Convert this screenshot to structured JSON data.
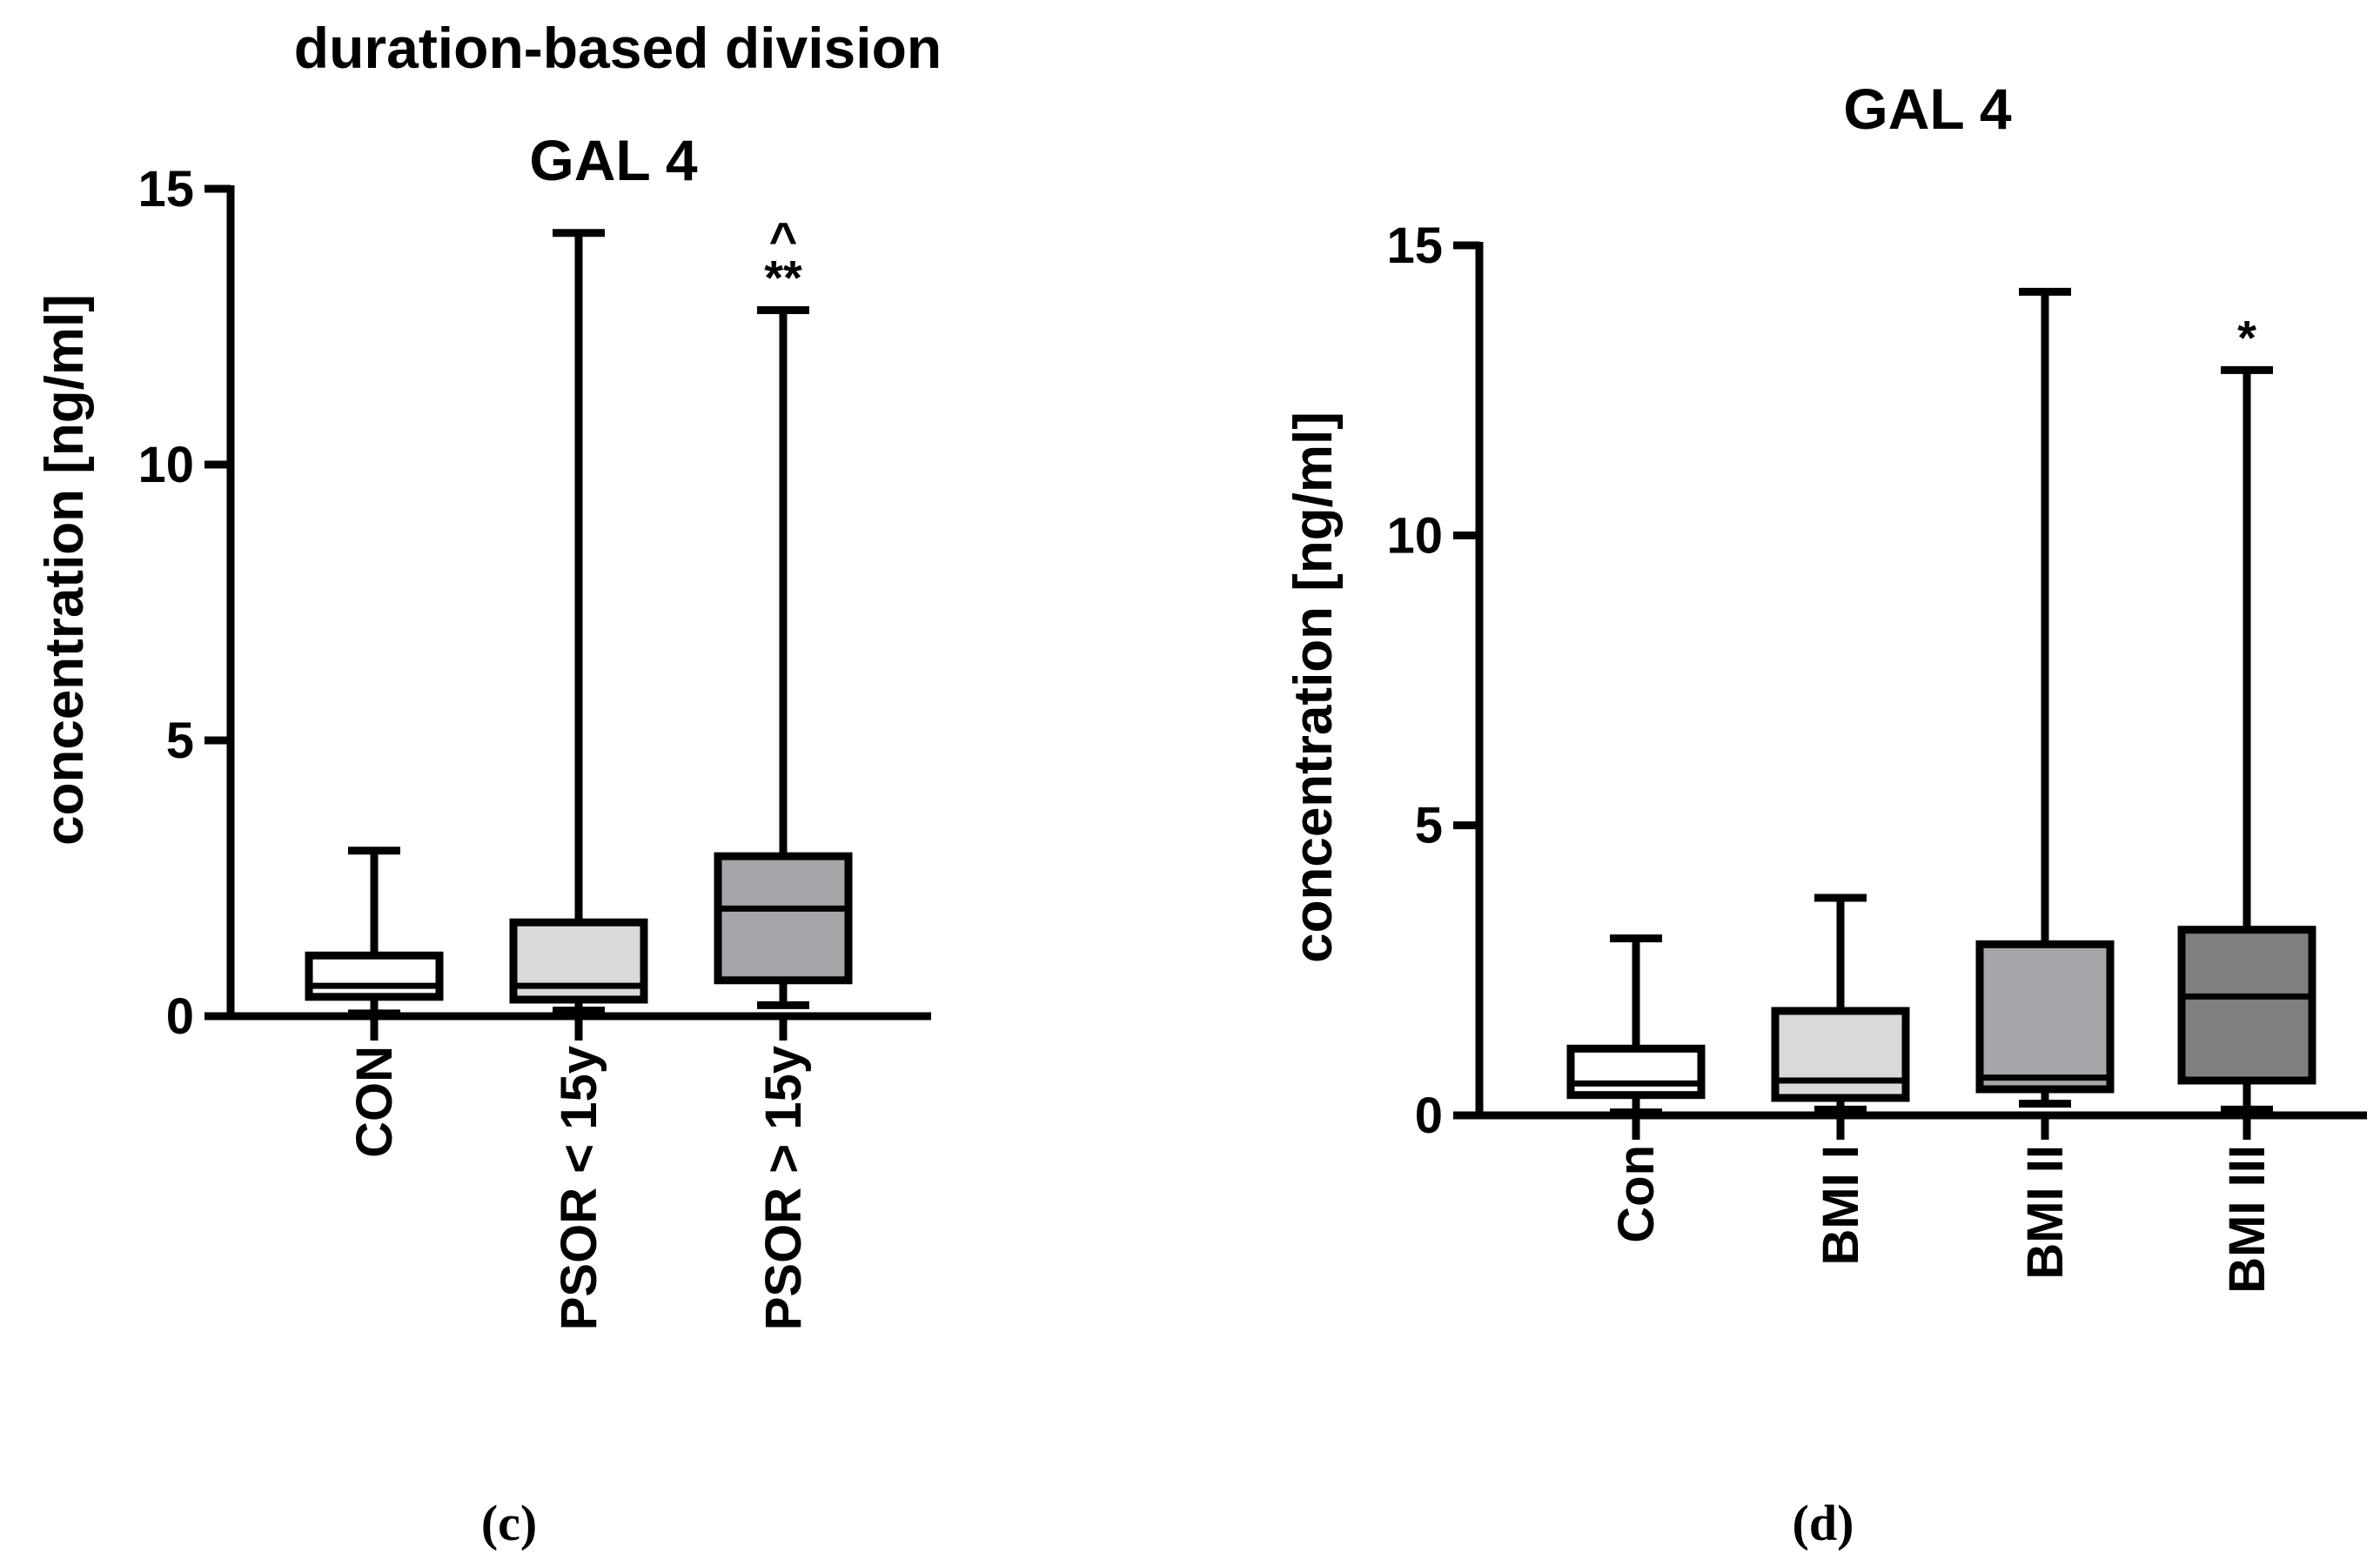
{
  "panels": [
    {
      "id": "c",
      "heading": "duration-based division",
      "label": "(c)"
    },
    {
      "id": "d",
      "heading": "",
      "label": "(d)"
    }
  ],
  "chart_data": [
    {
      "type": "boxplot",
      "title": "GAL 4",
      "suptitle": "duration-based division",
      "panel_label": "(c)",
      "xlabel": "",
      "ylabel": "concentration [ng/ml]",
      "ylim": [
        0,
        15
      ],
      "yticks": [
        0,
        5,
        10,
        15
      ],
      "ytick_labels": [
        "0",
        "5",
        "10",
        "15"
      ],
      "categories": [
        "CON",
        "PSOR < 15y",
        "PSOR > 15y"
      ],
      "boxes": [
        {
          "name": "CON",
          "min": 0.05,
          "q1": 0.35,
          "median": 0.55,
          "q3": 1.1,
          "max": 3.0,
          "fill": "#ffffff",
          "annotation": ""
        },
        {
          "name": "PSOR < 15y",
          "min": 0.1,
          "q1": 0.3,
          "median": 0.55,
          "q3": 1.7,
          "max": 14.2,
          "fill": "#d9d9d9",
          "annotation": ""
        },
        {
          "name": "PSOR > 15y",
          "min": 0.2,
          "q1": 0.65,
          "median": 1.95,
          "q3": 2.9,
          "max": 12.8,
          "fill": "#a6a6aa",
          "annotation": "**",
          "annotation2": "^"
        }
      ]
    },
    {
      "type": "boxplot",
      "title": "GAL 4",
      "panel_label": "(d)",
      "xlabel": "",
      "ylabel": "concentration [ng/ml]",
      "ylim": [
        0,
        15
      ],
      "yticks": [
        0,
        5,
        10,
        15
      ],
      "ytick_labels": [
        "0",
        "5",
        "10",
        "15"
      ],
      "categories": [
        "Con",
        "BMI I",
        "BMI II",
        "BMI III"
      ],
      "boxes": [
        {
          "name": "Con",
          "min": 0.05,
          "q1": 0.35,
          "median": 0.55,
          "q3": 1.15,
          "max": 3.05,
          "fill": "#ffffff",
          "annotation": ""
        },
        {
          "name": "BMI I",
          "min": 0.1,
          "q1": 0.3,
          "median": 0.6,
          "q3": 1.8,
          "max": 3.75,
          "fill": "#d9d9d9",
          "annotation": ""
        },
        {
          "name": "BMI II",
          "min": 0.2,
          "q1": 0.45,
          "median": 0.65,
          "q3": 2.95,
          "max": 14.2,
          "fill": "#a6a6aa",
          "annotation": ""
        },
        {
          "name": "BMI III",
          "min": 0.1,
          "q1": 0.6,
          "median": 2.05,
          "q3": 3.2,
          "max": 12.85,
          "fill": "#7f7f7f",
          "annotation": "*"
        }
      ]
    }
  ]
}
